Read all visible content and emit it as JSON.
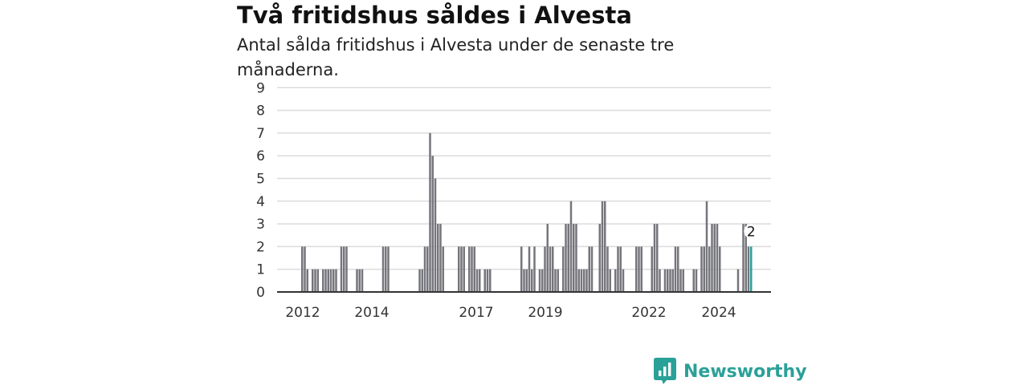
{
  "chart_data": {
    "type": "bar",
    "title": "Två fritidshus såldes i Alvesta",
    "subtitle": "Antal sålda fritidshus i Alvesta under de senaste tre månaderna.",
    "xlabel": "",
    "ylabel": "",
    "ylim": [
      0,
      9
    ],
    "yticks": [
      "0",
      "1",
      "2",
      "3",
      "4",
      "5",
      "6",
      "7",
      "8",
      "9"
    ],
    "xticks": [
      "2012",
      "2014",
      "2017",
      "2019",
      "2022",
      "2024"
    ],
    "grid": true,
    "series": [
      {
        "values": [
          2,
          2,
          1,
          0,
          1,
          1,
          1,
          0,
          1,
          1,
          1,
          1,
          1,
          1,
          0,
          2,
          2,
          2,
          0,
          0,
          0,
          1,
          1,
          1,
          0,
          0,
          0,
          0,
          0,
          0,
          0,
          2,
          2,
          2,
          0,
          0,
          0,
          0,
          0,
          0,
          0,
          0,
          0,
          0,
          0,
          1,
          1,
          2,
          2,
          7,
          6,
          5,
          3,
          3,
          2,
          0,
          0,
          0,
          0,
          0,
          2,
          2,
          2,
          0,
          2,
          2,
          2,
          1,
          1,
          0,
          1,
          1,
          1,
          0,
          0,
          0,
          0,
          0,
          0,
          0,
          0,
          0,
          0,
          0,
          2,
          1,
          1,
          2,
          1,
          2,
          0,
          1,
          1,
          2,
          3,
          2,
          2,
          1,
          1,
          0,
          2,
          3,
          3,
          4,
          3,
          3,
          1,
          1,
          1,
          1,
          2,
          2,
          0,
          0,
          3,
          4,
          4,
          2,
          1,
          0,
          1,
          2,
          2,
          1,
          0,
          0,
          0,
          0,
          2,
          2,
          2,
          0,
          0,
          0,
          2,
          3,
          3,
          1,
          0,
          1,
          1,
          1,
          1,
          2,
          2,
          1,
          1,
          0,
          0,
          0,
          1,
          1,
          0,
          2,
          2,
          4,
          2,
          3,
          3,
          3,
          2,
          0,
          0,
          0,
          0,
          0,
          0,
          1,
          0,
          3,
          3,
          2
        ],
        "highlight_value": 2,
        "highlight_label": "2"
      }
    ],
    "colors": {
      "bar": "#75757c",
      "highlight": "#2aa198",
      "grid": "#dcdcdc",
      "axis": "#333333"
    }
  },
  "brand": {
    "name": "Newsworthy",
    "icon": "newsworthy-logo-icon",
    "color": "#2aa198"
  }
}
